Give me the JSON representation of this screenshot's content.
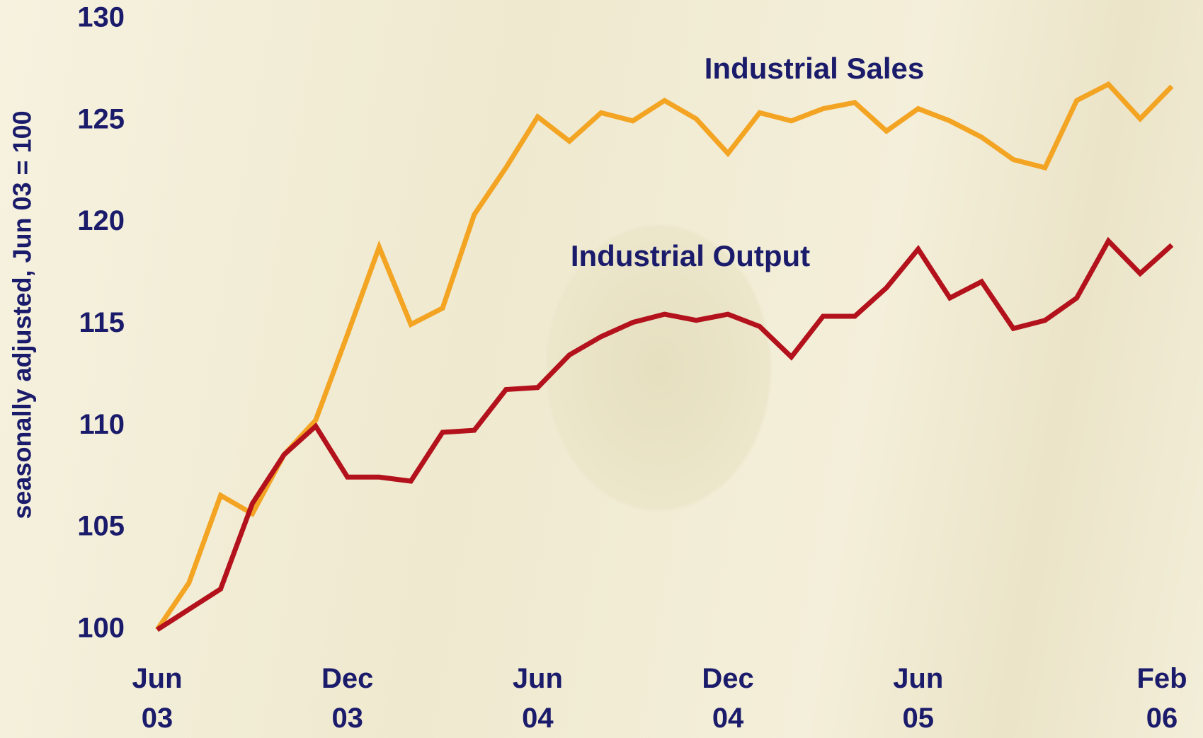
{
  "chart_data": {
    "type": "line",
    "y_label": "seasonally adjusted, Jun 03 = 100",
    "categories": [
      "Jun 03",
      null,
      null,
      null,
      null,
      null,
      "Dec 03",
      null,
      null,
      null,
      null,
      null,
      "Jun 04",
      null,
      null,
      null,
      null,
      null,
      "Dec 04",
      null,
      null,
      null,
      null,
      null,
      "Jun 05",
      null,
      null,
      null,
      null,
      null,
      null,
      null,
      "Feb 06"
    ],
    "series": [
      {
        "name": "Industrial Sales",
        "color": "#f3a422",
        "values": [
          100,
          102.3,
          106.6,
          105.7,
          108.6,
          110.3,
          114.5,
          118.8,
          115.0,
          115.8,
          120.4,
          122.7,
          125.2,
          124.0,
          125.4,
          125.0,
          126.0,
          125.1,
          123.4,
          125.4,
          125.0,
          125.6,
          125.9,
          124.5,
          125.6,
          125.0,
          124.2,
          123.1,
          122.7,
          126.0,
          126.8,
          125.1,
          126.7
        ]
      },
      {
        "name": "Industrial Output",
        "color": "#b3121c",
        "values": [
          100,
          101.0,
          102.0,
          106.2,
          108.6,
          110.0,
          107.5,
          107.5,
          107.3,
          109.7,
          109.8,
          111.8,
          111.9,
          113.5,
          114.4,
          115.1,
          115.5,
          115.2,
          115.5,
          114.9,
          113.4,
          115.4,
          115.4,
          116.8,
          118.7,
          116.3,
          117.1,
          114.8,
          115.2,
          116.3,
          119.1,
          117.5,
          118.9
        ]
      }
    ],
    "ylim": [
      100,
      130
    ],
    "yticks": [
      100,
      105,
      110,
      115,
      120,
      125,
      130
    ]
  }
}
